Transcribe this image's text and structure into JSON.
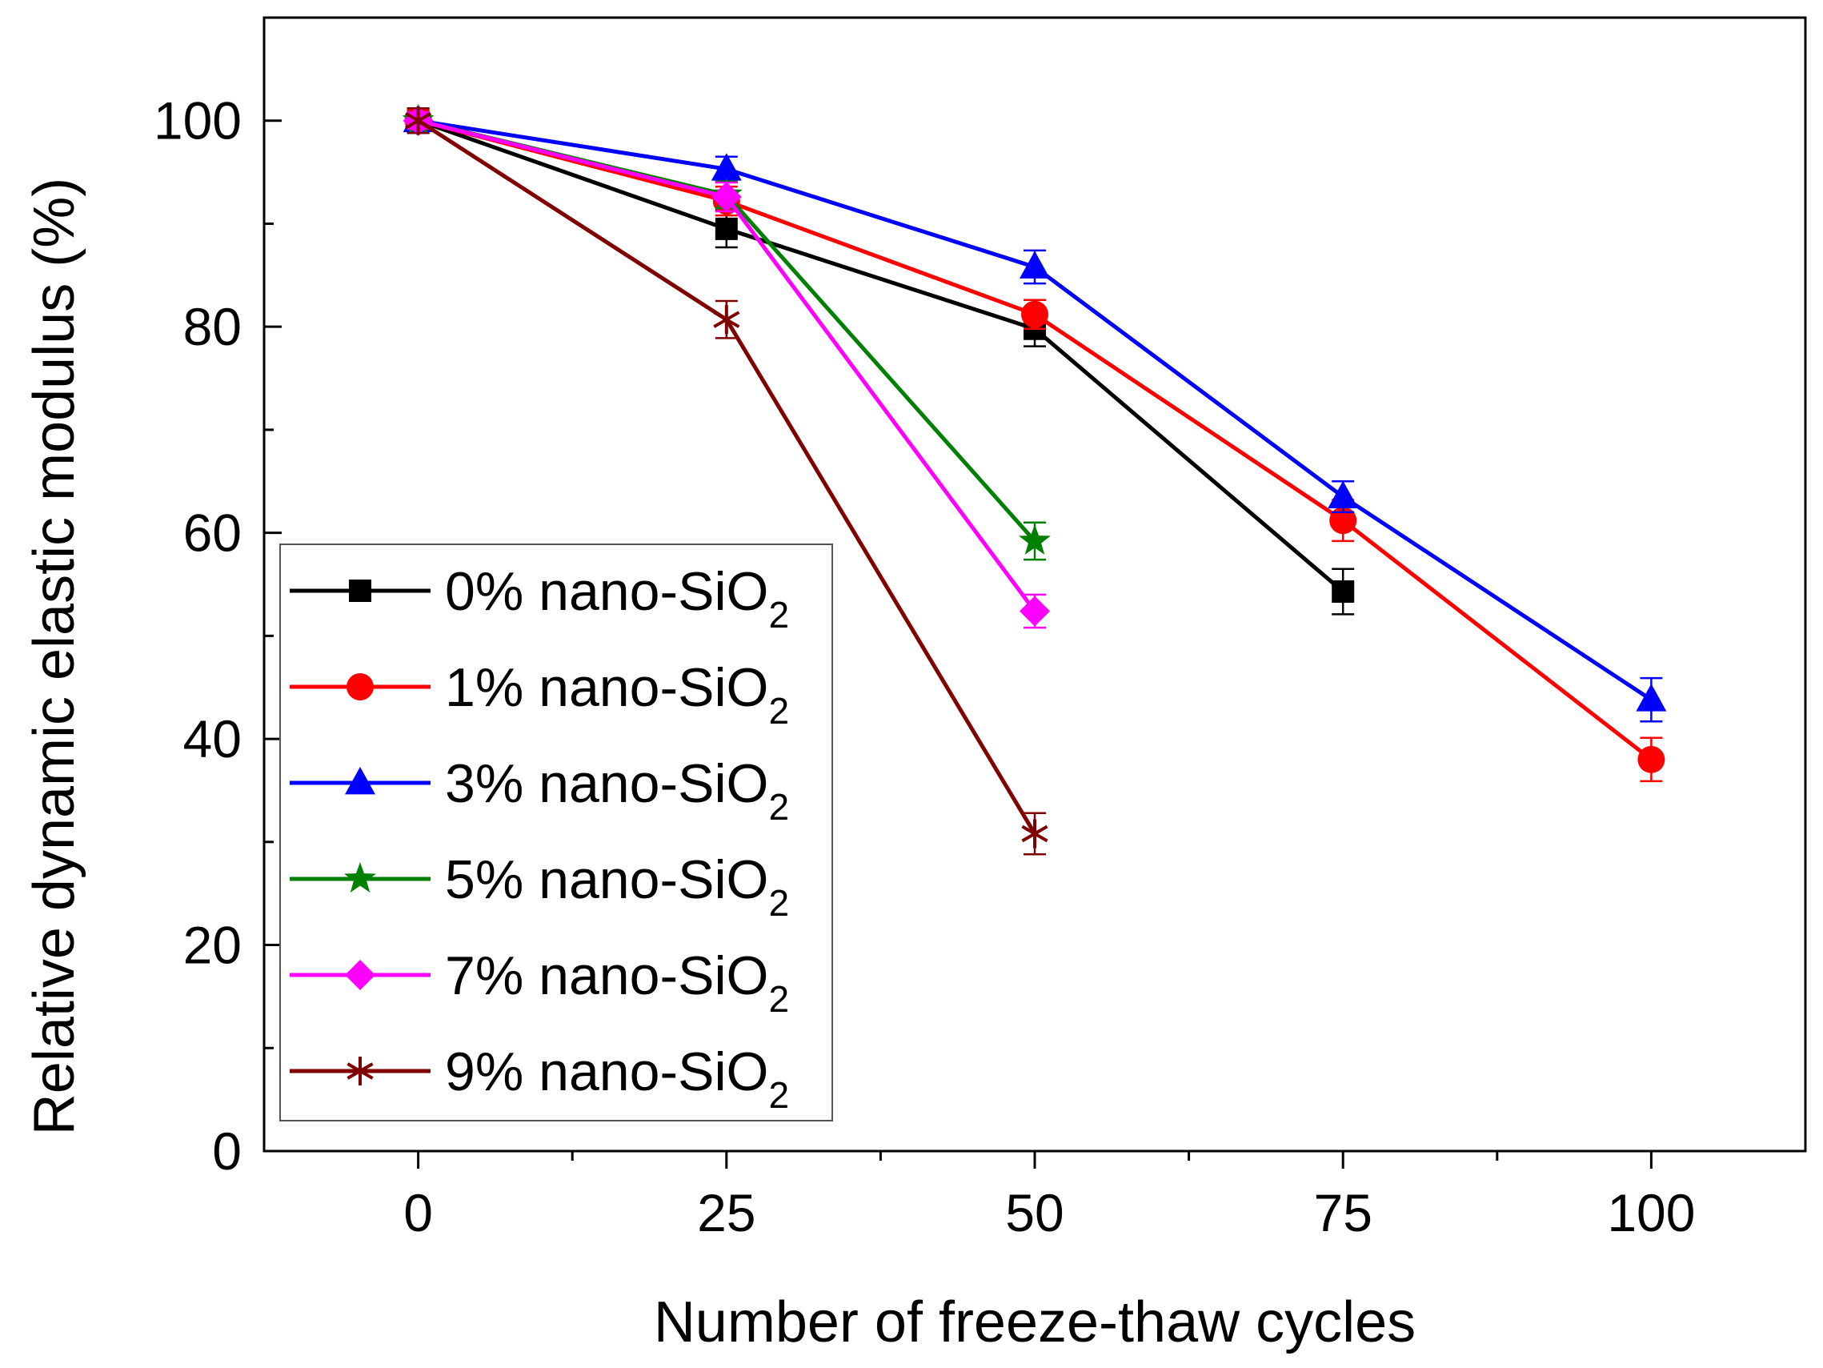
{
  "chart_data": {
    "type": "line",
    "title": "",
    "xlabel": "Number of freeze-thaw cycles",
    "ylabel": "Relative dynamic elastic modulus (%)",
    "xlim": [
      -12.5,
      112.5
    ],
    "ylim": [
      0,
      110
    ],
    "x_ticks": [
      0,
      25,
      50,
      75,
      100
    ],
    "x_tick_labels": [
      "0",
      "25",
      "50",
      "75",
      "100"
    ],
    "y_ticks": [
      0,
      20,
      40,
      60,
      80,
      100
    ],
    "y_tick_labels": [
      "0",
      "20",
      "40",
      "60",
      "80",
      "100"
    ],
    "grid": false,
    "legend_position": "lower-left",
    "series": [
      {
        "name": "0% nano-SiO2",
        "label_main": "0% nano-SiO",
        "label_sub": "2",
        "color": "#000000",
        "marker": "square",
        "x": [
          0,
          25,
          50,
          75
        ],
        "values": [
          100,
          89.5,
          79.8,
          54.3
        ],
        "errors": [
          1.2,
          1.8,
          1.7,
          2.2
        ]
      },
      {
        "name": "1% nano-SiO2",
        "label_main": "1% nano-SiO",
        "label_sub": "2",
        "color": "#ff0000",
        "marker": "circle",
        "x": [
          0,
          25,
          50,
          75,
          100
        ],
        "values": [
          100,
          92.2,
          81.2,
          61.2,
          38
        ],
        "errors": [
          1,
          1.4,
          1.4,
          2,
          2.1
        ]
      },
      {
        "name": "3% nano-SiO2",
        "label_main": "3% nano-SiO",
        "label_sub": "2",
        "color": "#0000ff",
        "marker": "triangle",
        "x": [
          0,
          25,
          50,
          75,
          100
        ],
        "values": [
          100,
          95.3,
          85.8,
          63.5,
          43.8
        ],
        "errors": [
          0.8,
          1.2,
          1.6,
          1.5,
          2.1
        ]
      },
      {
        "name": "5% nano-SiO2",
        "label_main": "5% nano-SiO",
        "label_sub": "2",
        "color": "#008000",
        "marker": "star",
        "x": [
          0,
          25,
          50
        ],
        "values": [
          100,
          92.8,
          59.2
        ],
        "errors": [
          0.8,
          1.3,
          1.8
        ]
      },
      {
        "name": "7% nano-SiO2",
        "label_main": "7% nano-SiO",
        "label_sub": "2",
        "color": "#ff00ff",
        "marker": "diamond",
        "x": [
          0,
          25,
          50
        ],
        "values": [
          100,
          92.6,
          52.4
        ],
        "errors": [
          0.8,
          1.4,
          1.6
        ]
      },
      {
        "name": "9% nano-SiO2",
        "label_main": "9% nano-SiO",
        "label_sub": "2",
        "color": "#800000",
        "marker": "asterisk",
        "x": [
          0,
          25,
          50
        ],
        "values": [
          100,
          80.7,
          30.8
        ],
        "errors": [
          1.2,
          1.8,
          2
        ]
      }
    ]
  }
}
